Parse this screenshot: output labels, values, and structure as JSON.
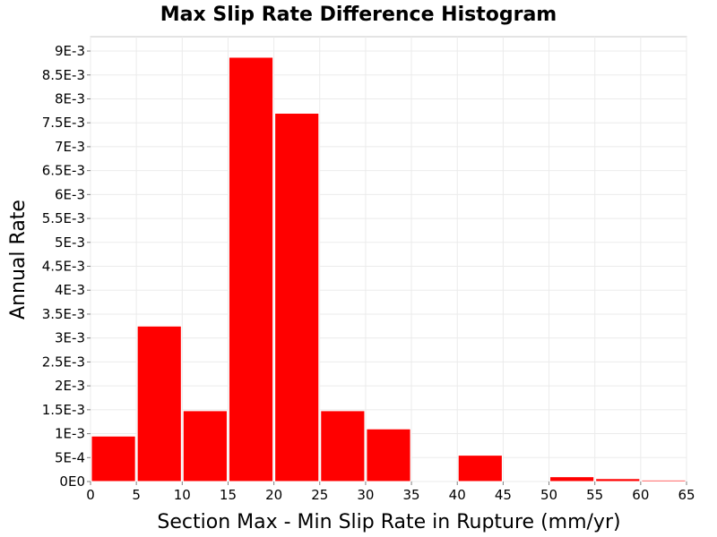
{
  "chart_data": {
    "type": "bar",
    "title": "Max Slip Rate Difference Histogram",
    "xlabel": "Section Max - Min Slip Rate in Rupture (mm/yr)",
    "ylabel": "Annual Rate",
    "xlim": [
      0,
      65
    ],
    "ylim": [
      0,
      0.0093
    ],
    "grid": true,
    "bar_color": "#ff0000",
    "bin_width": 5,
    "bins": [
      {
        "x0": 0,
        "x1": 5,
        "value": 0.00095
      },
      {
        "x0": 5,
        "x1": 10,
        "value": 0.00325
      },
      {
        "x0": 10,
        "x1": 15,
        "value": 0.00148
      },
      {
        "x0": 15,
        "x1": 20,
        "value": 0.00887
      },
      {
        "x0": 20,
        "x1": 25,
        "value": 0.0077
      },
      {
        "x0": 25,
        "x1": 30,
        "value": 0.00148
      },
      {
        "x0": 30,
        "x1": 35,
        "value": 0.0011
      },
      {
        "x0": 35,
        "x1": 40,
        "value": 0
      },
      {
        "x0": 40,
        "x1": 45,
        "value": 0.00055
      },
      {
        "x0": 45,
        "x1": 50,
        "value": 0
      },
      {
        "x0": 50,
        "x1": 55,
        "value": 0.0001
      },
      {
        "x0": 55,
        "x1": 60,
        "value": 6e-05
      },
      {
        "x0": 60,
        "x1": 65,
        "value": 3e-05
      }
    ],
    "x_ticks": [
      {
        "value": 0,
        "label": "0"
      },
      {
        "value": 5,
        "label": "5"
      },
      {
        "value": 10,
        "label": "10"
      },
      {
        "value": 15,
        "label": "15"
      },
      {
        "value": 20,
        "label": "20"
      },
      {
        "value": 25,
        "label": "25"
      },
      {
        "value": 30,
        "label": "30"
      },
      {
        "value": 35,
        "label": "35"
      },
      {
        "value": 40,
        "label": "40"
      },
      {
        "value": 45,
        "label": "45"
      },
      {
        "value": 50,
        "label": "50"
      },
      {
        "value": 55,
        "label": "55"
      },
      {
        "value": 60,
        "label": "60"
      },
      {
        "value": 65,
        "label": "65"
      }
    ],
    "y_ticks": [
      {
        "value": 0,
        "label": "0E0"
      },
      {
        "value": 0.0005,
        "label": "5E-4"
      },
      {
        "value": 0.001,
        "label": "1E-3"
      },
      {
        "value": 0.0015,
        "label": "1.5E-3"
      },
      {
        "value": 0.002,
        "label": "2E-3"
      },
      {
        "value": 0.0025,
        "label": "2.5E-3"
      },
      {
        "value": 0.003,
        "label": "3E-3"
      },
      {
        "value": 0.0035,
        "label": "3.5E-3"
      },
      {
        "value": 0.004,
        "label": "4E-3"
      },
      {
        "value": 0.0045,
        "label": "4.5E-3"
      },
      {
        "value": 0.005,
        "label": "5E-3"
      },
      {
        "value": 0.0055,
        "label": "5.5E-3"
      },
      {
        "value": 0.006,
        "label": "6E-3"
      },
      {
        "value": 0.0065,
        "label": "6.5E-3"
      },
      {
        "value": 0.007,
        "label": "7E-3"
      },
      {
        "value": 0.0075,
        "label": "7.5E-3"
      },
      {
        "value": 0.008,
        "label": "8E-3"
      },
      {
        "value": 0.0085,
        "label": "8.5E-3"
      },
      {
        "value": 0.009,
        "label": "9E-3"
      }
    ]
  }
}
